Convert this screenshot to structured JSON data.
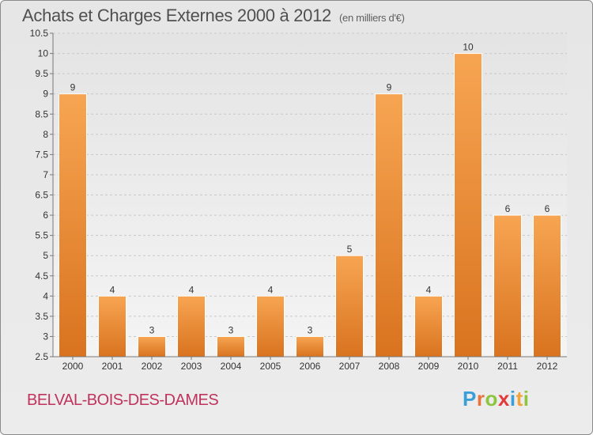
{
  "header": {
    "title": "Achats et Charges Externes 2000 à 2012",
    "unit": "(en milliers d'€)"
  },
  "footer": {
    "commune": "BELVAL-BOIS-DES-DAMES",
    "logo": {
      "text": "Proxiti",
      "letters": [
        {
          "ch": "P",
          "color": "#3a9fd8"
        },
        {
          "ch": "r",
          "color": "#e8743b"
        },
        {
          "ch": "o",
          "color": "#8cc63f"
        },
        {
          "ch": "x",
          "color": "#e23a3a"
        },
        {
          "ch": "i",
          "color": "#3a9fd8"
        },
        {
          "ch": "t",
          "color": "#f2a33a"
        },
        {
          "ch": "i",
          "color": "#8cc63f"
        }
      ]
    }
  },
  "colors": {
    "bar_light": "#f7a552",
    "bar_dark": "#d9731f",
    "grid": "#c8c8c8",
    "axis": "#777777",
    "text": "#333333"
  },
  "chart_data": {
    "type": "bar",
    "categories": [
      "2000",
      "2001",
      "2002",
      "2003",
      "2004",
      "2005",
      "2006",
      "2007",
      "2008",
      "2009",
      "2010",
      "2011",
      "2012"
    ],
    "values": [
      9,
      4,
      3,
      4,
      3,
      4,
      3,
      5,
      9,
      4,
      10,
      6,
      6
    ],
    "data_labels": [
      "9",
      "4",
      "3",
      "4",
      "3",
      "4",
      "3",
      "5",
      "9",
      "4",
      "10",
      "6",
      "6"
    ],
    "ylim": [
      2.5,
      10.5
    ],
    "yticks": [
      "2.5",
      "3",
      "3.5",
      "4",
      "4.5",
      "5",
      "5.5",
      "6",
      "6.5",
      "7",
      "7.5",
      "8",
      "8.5",
      "9",
      "9.5",
      "10",
      "10.5"
    ],
    "grid": true,
    "legend": false
  }
}
